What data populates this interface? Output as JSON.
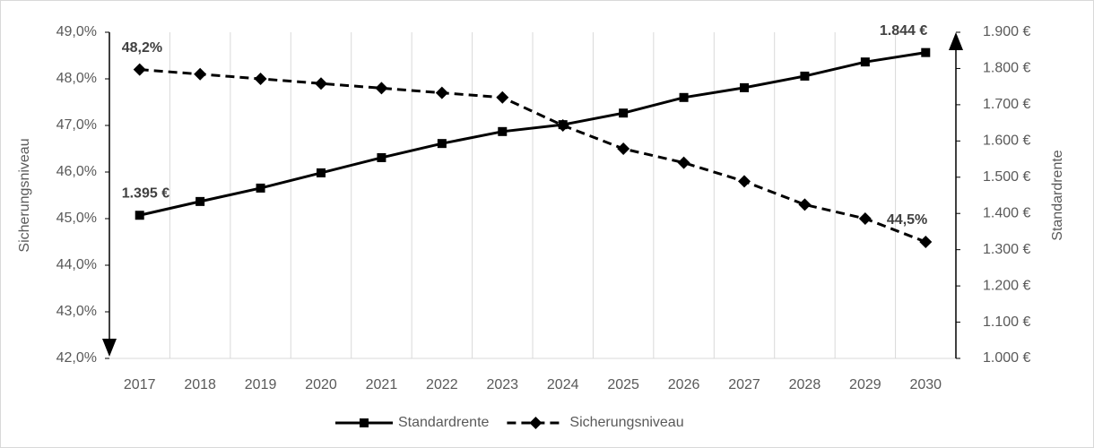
{
  "chart_data": {
    "type": "line",
    "categories": [
      "2017",
      "2018",
      "2019",
      "2020",
      "2021",
      "2022",
      "2023",
      "2024",
      "2025",
      "2026",
      "2027",
      "2028",
      "2029",
      "2030"
    ],
    "series": [
      {
        "name": "Standardrente",
        "color": "#000000",
        "axis": "y2",
        "marker": "square",
        "dashed": false,
        "values": [
          1395,
          1433,
          1470,
          1512,
          1554,
          1593,
          1626,
          1645,
          1677,
          1720,
          1747,
          1779,
          1818,
          1844
        ],
        "value_labels": [
          "1.395 €",
          null,
          null,
          null,
          null,
          null,
          null,
          null,
          null,
          null,
          null,
          null,
          null,
          "1.844 €"
        ]
      },
      {
        "name": "Sicherungsniveau",
        "color": "#000000",
        "marker": "diamond",
        "dashed": true,
        "values": [
          48.2,
          48.1,
          48.0,
          47.9,
          47.8,
          47.7,
          47.6,
          47.0,
          46.5,
          46.2,
          45.8,
          45.3,
          45.0,
          44.5
        ],
        "value_labels": [
          "48,2%",
          null,
          null,
          null,
          null,
          null,
          null,
          null,
          null,
          null,
          null,
          null,
          null,
          "44,5%"
        ]
      }
    ],
    "ylabel": "Sicherungsniveau",
    "y2label": "Standardrente",
    "ylim": [
      42,
      49
    ],
    "yticks": [
      {
        "value": 42,
        "label": "42,0%"
      },
      {
        "value": 43,
        "label": "43,0%"
      },
      {
        "value": 44,
        "label": "44,0%"
      },
      {
        "value": 45,
        "label": "45,0%"
      },
      {
        "value": 46,
        "label": "46,0%"
      },
      {
        "value": 47,
        "label": "47,0%"
      },
      {
        "value": 48,
        "label": "48,0%"
      },
      {
        "value": 49,
        "label": "49,0%"
      }
    ],
    "y2lim": [
      1000,
      1900
    ],
    "y2ticks": [
      {
        "value": 1000,
        "label": "1.000 €"
      },
      {
        "value": 1100,
        "label": "1.100 €"
      },
      {
        "value": 1200,
        "label": "1.200 €"
      },
      {
        "value": 1300,
        "label": "1.300 €"
      },
      {
        "value": 1400,
        "label": "1.400 €"
      },
      {
        "value": 1500,
        "label": "1.500 €"
      },
      {
        "value": 1600,
        "label": "1.600 €"
      },
      {
        "value": 1700,
        "label": "1.700 €"
      },
      {
        "value": 1800,
        "label": "1.800 €"
      },
      {
        "value": 1900,
        "label": "1.900 €"
      }
    ],
    "grid": true,
    "legend": "bottom"
  }
}
